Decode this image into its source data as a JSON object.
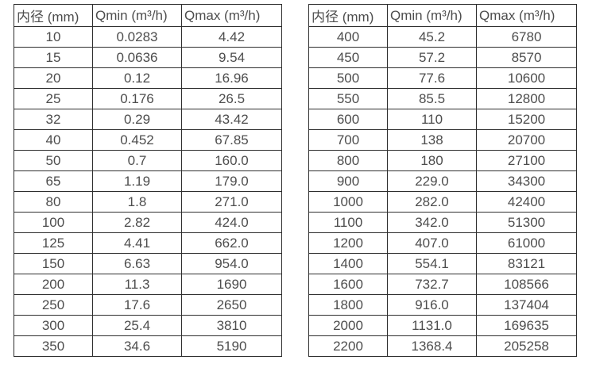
{
  "colors": {
    "border": "#2e2e2e",
    "text": "#4d4d4d",
    "background": "#ffffff"
  },
  "tables": [
    {
      "name": "flow-rate-table-small-diameters",
      "headers": [
        "内径 (mm)",
        "Qmin (m³/h)",
        "Qmax (m³/h)"
      ],
      "rows": [
        [
          "10",
          "0.0283",
          "4.42"
        ],
        [
          "15",
          "0.0636",
          "9.54"
        ],
        [
          "20",
          "0.12",
          "16.96"
        ],
        [
          "25",
          "0.176",
          "26.5"
        ],
        [
          "32",
          "0.29",
          "43.42"
        ],
        [
          "40",
          "0.452",
          "67.85"
        ],
        [
          "50",
          "0.7",
          "160.0"
        ],
        [
          "65",
          "1.19",
          "179.0"
        ],
        [
          "80",
          "1.8",
          "271.0"
        ],
        [
          "100",
          "2.82",
          "424.0"
        ],
        [
          "125",
          "4.41",
          "662.0"
        ],
        [
          "150",
          "6.63",
          "954.0"
        ],
        [
          "200",
          "11.3",
          "1690"
        ],
        [
          "250",
          "17.6",
          "2650"
        ],
        [
          "300",
          "25.4",
          "3810"
        ],
        [
          "350",
          "34.6",
          "5190"
        ]
      ]
    },
    {
      "name": "flow-rate-table-large-diameters",
      "headers": [
        "内径 (mm)",
        "Qmin (m³/h)",
        "Qmax (m³/h)"
      ],
      "rows": [
        [
          "400",
          "45.2",
          "6780"
        ],
        [
          "450",
          "57.2",
          "8570"
        ],
        [
          "500",
          "77.6",
          "10600"
        ],
        [
          "550",
          "85.5",
          "12800"
        ],
        [
          "600",
          "110",
          "15200"
        ],
        [
          "700",
          "138",
          "20700"
        ],
        [
          "800",
          "180",
          "27100"
        ],
        [
          "900",
          "229.0",
          "34300"
        ],
        [
          "1000",
          "282.0",
          "42400"
        ],
        [
          "1100",
          "342.0",
          "51300"
        ],
        [
          "1200",
          "407.0",
          "61000"
        ],
        [
          "1400",
          "554.1",
          "83121"
        ],
        [
          "1600",
          "732.7",
          "108566"
        ],
        [
          "1800",
          "916.0",
          "137404"
        ],
        [
          "2000",
          "1131.0",
          "169635"
        ],
        [
          "2200",
          "1368.4",
          "205258"
        ]
      ]
    }
  ]
}
